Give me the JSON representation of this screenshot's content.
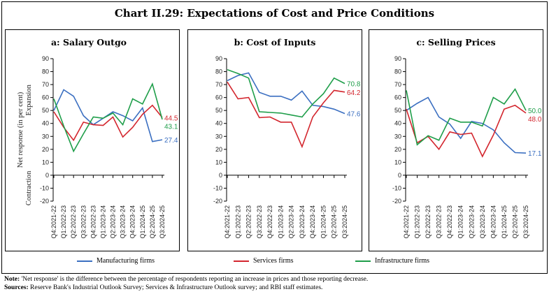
{
  "title": "Chart II.29: Expectations of Cost and Price Conditions",
  "colors": {
    "manufacturing": "#3b6fc1",
    "services": "#d3262e",
    "infrastructure": "#1f9e4a"
  },
  "legend": [
    "Manufacturing firms",
    "Services firms",
    "Infrastructure firms"
  ],
  "ylabel": "Net response (in per cent)",
  "expansion_label": "Expansion",
  "contraction_label": "Contraction",
  "notes": {
    "note_label": "Note:",
    "note_text": " 'Net response' is the difference between the percentage of respondents reporting an increase in prices and those reporting decrease.",
    "sources_label": "Sources:",
    "sources_text": " Reserve Bank's Industrial Outlook Survey; Services & Infrastructure Outlook survey; and RBI staff estimates."
  },
  "chart_data": [
    {
      "type": "line",
      "title": "a: Salary Outgo",
      "ylabel": "Net response (in per cent)",
      "ylim": [
        -20,
        90
      ],
      "yticks": [
        -20,
        -10,
        0,
        10,
        20,
        30,
        40,
        50,
        60,
        70,
        80,
        90
      ],
      "categories": [
        "Q4:2021-22",
        "Q1:2022-23",
        "Q2:2022-23",
        "Q3:2022-23",
        "Q4:2022-23",
        "Q1:2023-24",
        "Q2:2023-24",
        "Q3:2023-24",
        "Q4:2023-24",
        "Q1:2024-25",
        "Q2:2024-25",
        "Q3:2024-25"
      ],
      "series": [
        {
          "name": "Manufacturing firms",
          "values": [
            50,
            66,
            61,
            46,
            39,
            44,
            49,
            46,
            42,
            52,
            26,
            27.4
          ],
          "end_label": "27.4"
        },
        {
          "name": "Services firms",
          "values": [
            49,
            37,
            27,
            41,
            39,
            38.5,
            45,
            29.5,
            37,
            47,
            54,
            44.5
          ],
          "end_label": "44.5"
        },
        {
          "name": "Infrastructure firms",
          "values": [
            59,
            38,
            18.5,
            32,
            45,
            44,
            48,
            39,
            59,
            55,
            70.5,
            43.1
          ],
          "end_label": "43.1"
        }
      ],
      "legend": "bottom",
      "grid": false
    },
    {
      "type": "line",
      "title": "b: Cost of Inputs",
      "ylim": [
        -20,
        90
      ],
      "yticks": [
        -20,
        -10,
        0,
        10,
        20,
        30,
        40,
        50,
        60,
        70,
        80,
        90
      ],
      "categories": [
        "Q4:2021-22",
        "Q1:2022-23",
        "Q2:2022-23",
        "Q3:2022-23",
        "Q4:2022-23",
        "Q1:2023-24",
        "Q2:2023-24",
        "Q3:2023-24",
        "Q4:2023-24",
        "Q1:2024-25",
        "Q2:2024-25",
        "Q3:2024-25"
      ],
      "series": [
        {
          "name": "Manufacturing firms",
          "values": [
            73,
            77,
            79,
            64,
            61,
            61,
            58,
            65,
            54,
            53,
            51,
            47.6
          ],
          "end_label": "47.6"
        },
        {
          "name": "Services firms",
          "values": [
            72,
            59,
            60,
            44.5,
            45,
            41,
            41,
            22,
            45,
            56,
            65.5,
            64.2
          ],
          "end_label": "64.2"
        },
        {
          "name": "Infrastructure firms",
          "values": [
            81.5,
            78.5,
            75,
            49,
            48.5,
            48,
            46.5,
            45,
            55,
            63,
            75,
            70.8
          ],
          "end_label": "70.8"
        }
      ],
      "legend": "bottom",
      "grid": false
    },
    {
      "type": "line",
      "title": "c: Selling Prices",
      "ylim": [
        -20,
        90
      ],
      "yticks": [
        -20,
        -10,
        0,
        10,
        20,
        30,
        40,
        50,
        60,
        70,
        80,
        90
      ],
      "categories": [
        "Q4:2021-22",
        "Q1:2022-23",
        "Q2:2022-23",
        "Q3:2022-23",
        "Q4:2022-23",
        "Q1:2023-24",
        "Q2:2023-24",
        "Q3:2023-24",
        "Q4:2023-24",
        "Q1:2024-25",
        "Q2:2024-25",
        "Q3:2024-25"
      ],
      "series": [
        {
          "name": "Manufacturing firms",
          "values": [
            50,
            55.5,
            60,
            45,
            39.5,
            28.5,
            41.5,
            40,
            35,
            25,
            17.5,
            17.1
          ],
          "end_label": "17.1"
        },
        {
          "name": "Services firms",
          "values": [
            51,
            25,
            30,
            20,
            33.5,
            31.5,
            32.5,
            14.5,
            31,
            51,
            54,
            48.0
          ],
          "end_label": "48.0"
        },
        {
          "name": "Infrastructure firms",
          "values": [
            65.5,
            23.5,
            30.5,
            27,
            44,
            41,
            41,
            38,
            60,
            55,
            66.5,
            50.0
          ],
          "end_label": "50.0"
        }
      ],
      "legend": "bottom",
      "grid": false
    }
  ]
}
